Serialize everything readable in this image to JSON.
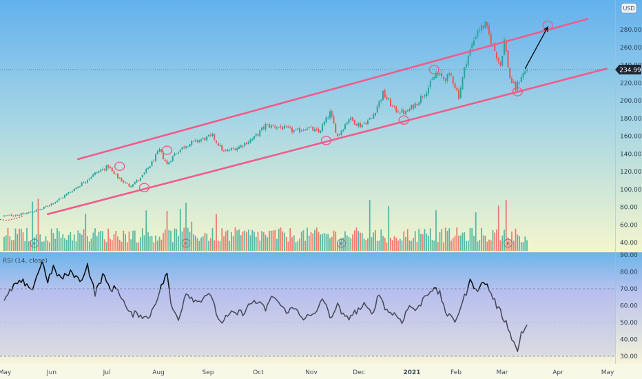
{
  "header": {
    "currency": "USD"
  },
  "price": {
    "last": "234.99"
  },
  "rsi_label": "RSI (14, close)",
  "colors": {
    "up": "#26a69a",
    "down": "#ef5350",
    "trend": "#f25a8a",
    "rsi": "#111111"
  },
  "chart_data": [
    {
      "type": "candlestick",
      "x_tick_labels": [
        "May",
        "Jun",
        "Jul",
        "Aug",
        "Sep",
        "Oct",
        "Nov",
        "Dec",
        "2021",
        "Feb",
        "Mar",
        "Apr",
        "May"
      ],
      "y_ticks": [
        40,
        60,
        80,
        100,
        120,
        140,
        160,
        180,
        200,
        220,
        240,
        260,
        280
      ],
      "ylim": [
        30,
        295
      ],
      "last_price": 234.99,
      "anchors": [
        {
          "day": 0,
          "price": 70
        },
        {
          "day": 10,
          "price": 72
        },
        {
          "day": 20,
          "price": 78
        },
        {
          "day": 30,
          "price": 90
        },
        {
          "day": 40,
          "price": 105
        },
        {
          "day": 48,
          "price": 118
        },
        {
          "day": 55,
          "price": 126
        },
        {
          "day": 58,
          "price": 117
        },
        {
          "day": 62,
          "price": 110
        },
        {
          "day": 66,
          "price": 104
        },
        {
          "day": 72,
          "price": 112
        },
        {
          "day": 78,
          "price": 130
        },
        {
          "day": 82,
          "price": 144
        },
        {
          "day": 86,
          "price": 128
        },
        {
          "day": 90,
          "price": 140
        },
        {
          "day": 96,
          "price": 150
        },
        {
          "day": 104,
          "price": 156
        },
        {
          "day": 110,
          "price": 160
        },
        {
          "day": 116,
          "price": 142
        },
        {
          "day": 124,
          "price": 148
        },
        {
          "day": 132,
          "price": 158
        },
        {
          "day": 138,
          "price": 172
        },
        {
          "day": 146,
          "price": 170
        },
        {
          "day": 154,
          "price": 165
        },
        {
          "day": 160,
          "price": 170
        },
        {
          "day": 166,
          "price": 164
        },
        {
          "day": 172,
          "price": 186
        },
        {
          "day": 176,
          "price": 160
        },
        {
          "day": 182,
          "price": 180
        },
        {
          "day": 188,
          "price": 172
        },
        {
          "day": 194,
          "price": 180
        },
        {
          "day": 200,
          "price": 208
        },
        {
          "day": 206,
          "price": 190
        },
        {
          "day": 212,
          "price": 186
        },
        {
          "day": 218,
          "price": 198
        },
        {
          "day": 224,
          "price": 215
        },
        {
          "day": 228,
          "price": 230
        },
        {
          "day": 232,
          "price": 225
        },
        {
          "day": 236,
          "price": 228
        },
        {
          "day": 240,
          "price": 205
        },
        {
          "day": 244,
          "price": 245
        },
        {
          "day": 250,
          "price": 280
        },
        {
          "day": 254,
          "price": 285
        },
        {
          "day": 258,
          "price": 262
        },
        {
          "day": 262,
          "price": 240
        },
        {
          "day": 264,
          "price": 268
        },
        {
          "day": 267,
          "price": 225
        },
        {
          "day": 270,
          "price": 213
        },
        {
          "day": 273,
          "price": 228
        },
        {
          "day": 276,
          "price": 235
        }
      ],
      "trendlines": [
        {
          "start": {
            "day": 39,
            "price": 134
          },
          "end": {
            "day": 308,
            "price": 292
          }
        },
        {
          "start": {
            "day": 23,
            "price": 72
          },
          "end": {
            "day": 318,
            "price": 236
          }
        }
      ],
      "projection_arrow": {
        "start": {
          "day": 275,
          "price": 236
        },
        "end": {
          "day": 287,
          "price": 283
        }
      },
      "circle_markers": [
        {
          "day": 61,
          "price": 126
        },
        {
          "day": 74,
          "price": 102
        },
        {
          "day": 86,
          "price": 144
        },
        {
          "day": 170,
          "price": 155
        },
        {
          "day": 211,
          "price": 178
        },
        {
          "day": 227,
          "price": 235
        },
        {
          "day": 271,
          "price": 210
        },
        {
          "day": 287,
          "price": 285
        }
      ],
      "earnings_days": [
        16,
        96,
        178,
        266
      ]
    },
    {
      "type": "line",
      "series": [
        {
          "name": "RSI (14, close)"
        }
      ],
      "y_ticks": [
        30,
        40,
        50,
        60,
        70,
        80,
        90
      ],
      "ylim": [
        28,
        93
      ],
      "bands": [
        30,
        70
      ],
      "anchors": [
        {
          "day": 0,
          "value": 62
        },
        {
          "day": 5,
          "value": 72
        },
        {
          "day": 10,
          "value": 74
        },
        {
          "day": 14,
          "value": 68
        },
        {
          "day": 20,
          "value": 86
        },
        {
          "day": 23,
          "value": 75
        },
        {
          "day": 26,
          "value": 82
        },
        {
          "day": 30,
          "value": 76
        },
        {
          "day": 36,
          "value": 80
        },
        {
          "day": 40,
          "value": 74
        },
        {
          "day": 44,
          "value": 84
        },
        {
          "day": 48,
          "value": 67
        },
        {
          "day": 52,
          "value": 78
        },
        {
          "day": 56,
          "value": 70
        },
        {
          "day": 60,
          "value": 70
        },
        {
          "day": 66,
          "value": 55
        },
        {
          "day": 72,
          "value": 55
        },
        {
          "day": 76,
          "value": 52
        },
        {
          "day": 82,
          "value": 68
        },
        {
          "day": 86,
          "value": 80
        },
        {
          "day": 88,
          "value": 60
        },
        {
          "day": 92,
          "value": 52
        },
        {
          "day": 96,
          "value": 68
        },
        {
          "day": 102,
          "value": 62
        },
        {
          "day": 108,
          "value": 68
        },
        {
          "day": 114,
          "value": 50
        },
        {
          "day": 120,
          "value": 55
        },
        {
          "day": 126,
          "value": 56
        },
        {
          "day": 132,
          "value": 63
        },
        {
          "day": 138,
          "value": 58
        },
        {
          "day": 142,
          "value": 66
        },
        {
          "day": 148,
          "value": 57
        },
        {
          "day": 154,
          "value": 58
        },
        {
          "day": 158,
          "value": 53
        },
        {
          "day": 164,
          "value": 54
        },
        {
          "day": 168,
          "value": 65
        },
        {
          "day": 172,
          "value": 53
        },
        {
          "day": 176,
          "value": 60
        },
        {
          "day": 180,
          "value": 52
        },
        {
          "day": 184,
          "value": 55
        },
        {
          "day": 190,
          "value": 60
        },
        {
          "day": 194,
          "value": 55
        },
        {
          "day": 198,
          "value": 67
        },
        {
          "day": 202,
          "value": 57
        },
        {
          "day": 206,
          "value": 55
        },
        {
          "day": 210,
          "value": 51
        },
        {
          "day": 214,
          "value": 60
        },
        {
          "day": 218,
          "value": 57
        },
        {
          "day": 222,
          "value": 66
        },
        {
          "day": 226,
          "value": 70
        },
        {
          "day": 230,
          "value": 67
        },
        {
          "day": 234,
          "value": 54
        },
        {
          "day": 238,
          "value": 51
        },
        {
          "day": 242,
          "value": 62
        },
        {
          "day": 246,
          "value": 74
        },
        {
          "day": 250,
          "value": 70
        },
        {
          "day": 254,
          "value": 74
        },
        {
          "day": 258,
          "value": 65
        },
        {
          "day": 260,
          "value": 60
        },
        {
          "day": 264,
          "value": 52
        },
        {
          "day": 267,
          "value": 45
        },
        {
          "day": 269,
          "value": 38
        },
        {
          "day": 271,
          "value": 33
        },
        {
          "day": 273,
          "value": 44
        },
        {
          "day": 276,
          "value": 48
        }
      ]
    }
  ]
}
